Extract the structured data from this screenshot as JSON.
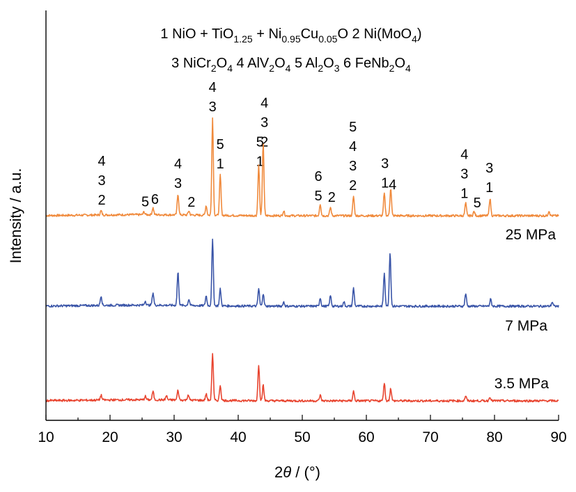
{
  "chart_data": {
    "type": "line",
    "xlabel_prefix": "2",
    "xlabel_symbol": "θ",
    "xlabel_unit": " / (°)",
    "ylabel": "Intensity / a.u.",
    "xlim": [
      10,
      90
    ],
    "xticks": [
      "10",
      "20",
      "30",
      "40",
      "50",
      "60",
      "70",
      "80",
      "90"
    ],
    "grid": false,
    "legend_lines": [
      [
        {
          "text": "1  NiO + TiO"
        },
        {
          "text": "1.25",
          "sub": true
        },
        {
          "text": " + Ni"
        },
        {
          "text": "0.95",
          "sub": true
        },
        {
          "text": "Cu"
        },
        {
          "text": "0.05",
          "sub": true
        },
        {
          "text": "O        2  Ni(MoO"
        },
        {
          "text": "4",
          "sub": true
        },
        {
          "text": ")"
        }
      ],
      [
        {
          "text": "3  NiCr"
        },
        {
          "text": "2",
          "sub": true
        },
        {
          "text": "O"
        },
        {
          "text": "4",
          "sub": true
        },
        {
          "text": "     4  AlV"
        },
        {
          "text": "2",
          "sub": true
        },
        {
          "text": "O"
        },
        {
          "text": "4",
          "sub": true
        },
        {
          "text": "     5  Al"
        },
        {
          "text": "2",
          "sub": true
        },
        {
          "text": "O"
        },
        {
          "text": "3",
          "sub": true
        },
        {
          "text": "   6  FeNb"
        },
        {
          "text": "2",
          "sub": true
        },
        {
          "text": "O"
        },
        {
          "text": "4",
          "sub": true
        }
      ]
    ],
    "series": [
      {
        "name": "25 MPa",
        "color": "#f08a3c",
        "peaks": [
          [
            18.6,
            6
          ],
          [
            25.3,
            4
          ],
          [
            26.7,
            10
          ],
          [
            30.6,
            30
          ],
          [
            32.3,
            6
          ],
          [
            35.0,
            14
          ],
          [
            36.0,
            140
          ],
          [
            37.2,
            58
          ],
          [
            43.2,
            72
          ],
          [
            43.9,
            105
          ],
          [
            47.1,
            7
          ],
          [
            52.8,
            17
          ],
          [
            54.4,
            12
          ],
          [
            58.0,
            28
          ],
          [
            62.8,
            32
          ],
          [
            63.8,
            40
          ],
          [
            75.5,
            18
          ],
          [
            76.8,
            6
          ],
          [
            79.3,
            25
          ],
          [
            88.5,
            7
          ]
        ]
      },
      {
        "name": "7 MPa",
        "color": "#3a55a8",
        "peaks": [
          [
            18.6,
            14
          ],
          [
            25.5,
            6
          ],
          [
            26.7,
            18
          ],
          [
            30.6,
            48
          ],
          [
            32.3,
            9
          ],
          [
            35.0,
            14
          ],
          [
            36.0,
            95
          ],
          [
            37.2,
            24
          ],
          [
            43.2,
            25
          ],
          [
            43.9,
            18
          ],
          [
            47.1,
            6
          ],
          [
            52.8,
            12
          ],
          [
            54.4,
            15
          ],
          [
            56.5,
            6
          ],
          [
            58.0,
            26
          ],
          [
            62.8,
            48
          ],
          [
            63.7,
            78
          ],
          [
            75.5,
            18
          ],
          [
            79.4,
            10
          ],
          [
            89.0,
            6
          ]
        ]
      },
      {
        "name": "3.5 MPa",
        "color": "#e8442f",
        "peaks": [
          [
            18.6,
            7
          ],
          [
            25.5,
            5
          ],
          [
            26.7,
            12
          ],
          [
            28.8,
            6
          ],
          [
            30.6,
            14
          ],
          [
            32.2,
            8
          ],
          [
            35.0,
            9
          ],
          [
            36.0,
            68
          ],
          [
            37.2,
            22
          ],
          [
            43.2,
            52
          ],
          [
            43.9,
            22
          ],
          [
            52.8,
            8
          ],
          [
            58.0,
            14
          ],
          [
            62.8,
            26
          ],
          [
            63.8,
            18
          ],
          [
            75.5,
            7
          ],
          [
            79.3,
            6
          ]
        ]
      }
    ],
    "peak_labels": [
      {
        "x": 18.7,
        "lines": [
          "4",
          "3",
          "2"
        ]
      },
      {
        "x": 25.5,
        "lines": [
          "5"
        ]
      },
      {
        "x": 27.0,
        "lines": [
          "6"
        ]
      },
      {
        "x": 30.6,
        "lines": [
          "4",
          "3"
        ]
      },
      {
        "x": 32.7,
        "lines": [
          "2"
        ]
      },
      {
        "x": 36.0,
        "lines": [
          "4",
          "3"
        ]
      },
      {
        "x": 37.2,
        "lines": [
          "5",
          "1"
        ]
      },
      {
        "x": 43.4,
        "lines": [
          "5",
          "1"
        ]
      },
      {
        "x": 44.1,
        "lines": [
          "4",
          "3",
          "2"
        ]
      },
      {
        "x": 52.5,
        "lines": [
          "6",
          "5"
        ]
      },
      {
        "x": 54.6,
        "lines": [
          "2"
        ]
      },
      {
        "x": 57.9,
        "lines": [
          "5",
          "4",
          "3",
          "2"
        ]
      },
      {
        "x": 62.9,
        "lines": [
          "3",
          "1"
        ]
      },
      {
        "x": 64.1,
        "lines": [
          "4"
        ]
      },
      {
        "x": 75.3,
        "lines": [
          "4",
          "3",
          "1"
        ]
      },
      {
        "x": 77.3,
        "lines": [
          "5"
        ]
      },
      {
        "x": 79.2,
        "lines": [
          "3",
          "1"
        ]
      }
    ]
  }
}
